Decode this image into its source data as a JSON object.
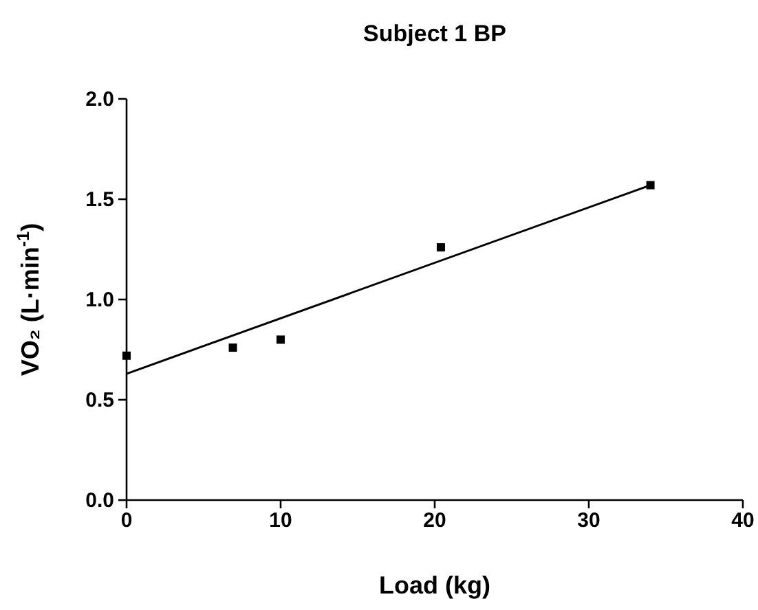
{
  "chart_data": {
    "type": "scatter",
    "title": "Subject 1 BP",
    "xlabel": "Load (kg)",
    "ylabel": "VO₂ (L·min$^{-1}$)",
    "xlim": [
      0,
      40
    ],
    "xticks": [
      0,
      10,
      20,
      30,
      40
    ],
    "ylim": [
      0,
      2
    ],
    "yticks": [
      {
        "value": 0,
        "label": "0.0"
      },
      {
        "value": 0.5,
        "label": "0.5"
      },
      {
        "value": 1,
        "label": "1.0"
      },
      {
        "value": 1.5,
        "label": "1.5"
      },
      {
        "value": 2,
        "label": "2.0"
      }
    ],
    "grid": false,
    "series": [
      {
        "marker": "square",
        "color": "#000000",
        "x": [
          0,
          6.9,
          10,
          20.4,
          34
        ],
        "values": [
          0.72,
          0.76,
          0.8,
          1.26,
          1.57
        ]
      },
      {
        "type": "line",
        "color": "#000000",
        "x": [
          0,
          34
        ],
        "values": [
          0.63,
          1.57
        ],
        "line_style": "solid"
      }
    ]
  }
}
